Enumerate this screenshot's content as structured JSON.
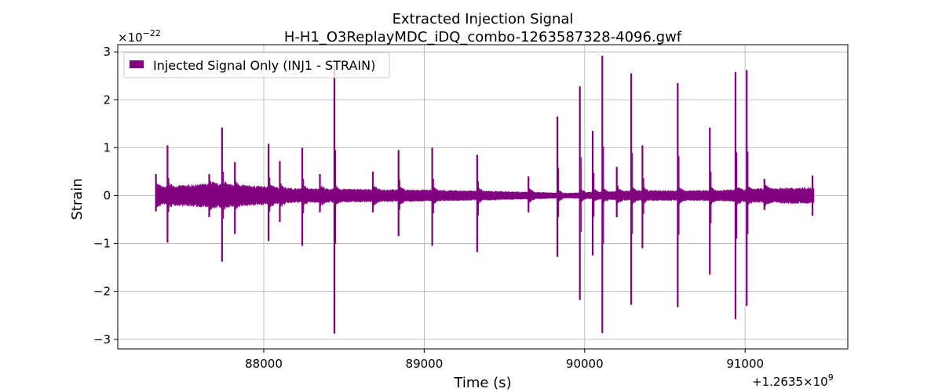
{
  "chart_data": {
    "type": "line",
    "title_line1": "Extracted Injection Signal",
    "title_line2": "H-H1_O3ReplayMDC_iDQ_combo-1263587328-4096.gwf",
    "xlabel": "Time (s)",
    "ylabel": "Strain",
    "x_offset_label": "+1.2635×10",
    "x_offset_exp": "9",
    "y_scale_label": "×10",
    "y_scale_exp": "−22",
    "xlim": [
      87090,
      91640
    ],
    "ylim": [
      -3.2,
      3.15
    ],
    "x_ticks": [
      88000,
      89000,
      90000,
      91000
    ],
    "x_tick_labels": [
      "88000",
      "89000",
      "90000",
      "91000"
    ],
    "y_ticks": [
      -3,
      -2,
      -1,
      0,
      1,
      2,
      3
    ],
    "y_tick_labels": [
      "−3",
      "−2",
      "−1",
      "0",
      "1",
      "2",
      "3"
    ],
    "grid": true,
    "legend_position": "upper-left",
    "series": [
      {
        "name": "Injected Signal Only (INJ1 - STRAIN)",
        "color": "#800080",
        "x_start": 87328,
        "x_end": 91424,
        "spikes": [
          {
            "x": 87328,
            "top": 0.45,
            "bottom": -0.33
          },
          {
            "x": 87400,
            "top": 1.05,
            "bottom": -0.98
          },
          {
            "x": 87660,
            "top": 0.45,
            "bottom": -0.45
          },
          {
            "x": 87740,
            "top": 1.42,
            "bottom": -1.38
          },
          {
            "x": 87820,
            "top": 0.7,
            "bottom": -0.8
          },
          {
            "x": 88030,
            "top": 1.08,
            "bottom": -0.95
          },
          {
            "x": 88100,
            "top": 0.72,
            "bottom": -0.55
          },
          {
            "x": 88240,
            "top": 1.0,
            "bottom": -1.05
          },
          {
            "x": 88350,
            "top": 0.45,
            "bottom": -0.35
          },
          {
            "x": 88440,
            "top": 2.72,
            "bottom": -2.88
          },
          {
            "x": 88680,
            "top": 0.5,
            "bottom": -0.35
          },
          {
            "x": 88840,
            "top": 0.95,
            "bottom": -0.85
          },
          {
            "x": 89050,
            "top": 1.0,
            "bottom": -1.05
          },
          {
            "x": 89330,
            "top": 0.85,
            "bottom": -1.18
          },
          {
            "x": 89650,
            "top": 0.4,
            "bottom": -0.35
          },
          {
            "x": 89830,
            "top": 1.65,
            "bottom": -1.28
          },
          {
            "x": 89970,
            "top": 2.28,
            "bottom": -2.18
          },
          {
            "x": 90050,
            "top": 1.35,
            "bottom": -1.25
          },
          {
            "x": 90110,
            "top": 2.92,
            "bottom": -2.87
          },
          {
            "x": 90200,
            "top": 0.6,
            "bottom": -0.45
          },
          {
            "x": 90290,
            "top": 2.55,
            "bottom": -2.28
          },
          {
            "x": 90360,
            "top": 1.05,
            "bottom": -1.1
          },
          {
            "x": 90580,
            "top": 2.35,
            "bottom": -2.33
          },
          {
            "x": 90780,
            "top": 1.42,
            "bottom": -1.65
          },
          {
            "x": 90940,
            "top": 2.58,
            "bottom": -2.58
          },
          {
            "x": 91010,
            "top": 2.62,
            "bottom": -2.3
          },
          {
            "x": 91120,
            "top": 0.35,
            "bottom": -0.3
          },
          {
            "x": 91420,
            "top": 0.42,
            "bottom": -0.42
          }
        ],
        "envelope": [
          {
            "x": 87330,
            "amp": 0.17
          },
          {
            "x": 87700,
            "amp": 0.24
          },
          {
            "x": 88200,
            "amp": 0.14
          },
          {
            "x": 88800,
            "amp": 0.12
          },
          {
            "x": 89400,
            "amp": 0.09
          },
          {
            "x": 89900,
            "amp": 0.05
          },
          {
            "x": 90300,
            "amp": 0.1
          },
          {
            "x": 90800,
            "amp": 0.1
          },
          {
            "x": 91100,
            "amp": 0.14
          },
          {
            "x": 91424,
            "amp": 0.16
          }
        ]
      }
    ]
  }
}
